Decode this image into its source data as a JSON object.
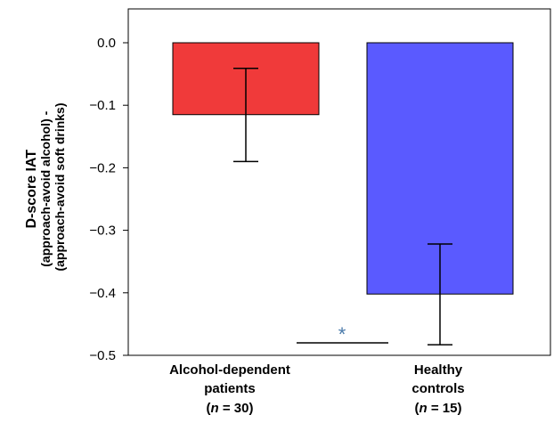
{
  "chart_data": {
    "type": "bar",
    "ylabel_lines": [
      "D-score IAT",
      "(approach-avoid alcohol) -",
      "(approach-avoid soft drinks)"
    ],
    "ylim": [
      -0.5,
      0.0
    ],
    "yticks": [
      "0.0",
      "-0.1",
      "-0.2",
      "-0.3",
      "-0.4",
      "-0.5"
    ],
    "grid": false,
    "categories": [
      {
        "line1": "Alcohol-dependent",
        "line2": "patients",
        "n_label": "n",
        "n_value": " = 30)"
      },
      {
        "line1": "Healthy",
        "line2": "controls",
        "n_label": "n",
        "n_value": " = 15)"
      }
    ],
    "values": [
      -0.115,
      -0.402
    ],
    "error_low": [
      -0.19,
      -0.483
    ],
    "error_high": [
      -0.041,
      -0.322
    ],
    "colors": [
      "#f03a3a",
      "#5a5aff"
    ],
    "significance": {
      "label": "*",
      "y": -0.48,
      "color": "#4a7aaa"
    }
  }
}
